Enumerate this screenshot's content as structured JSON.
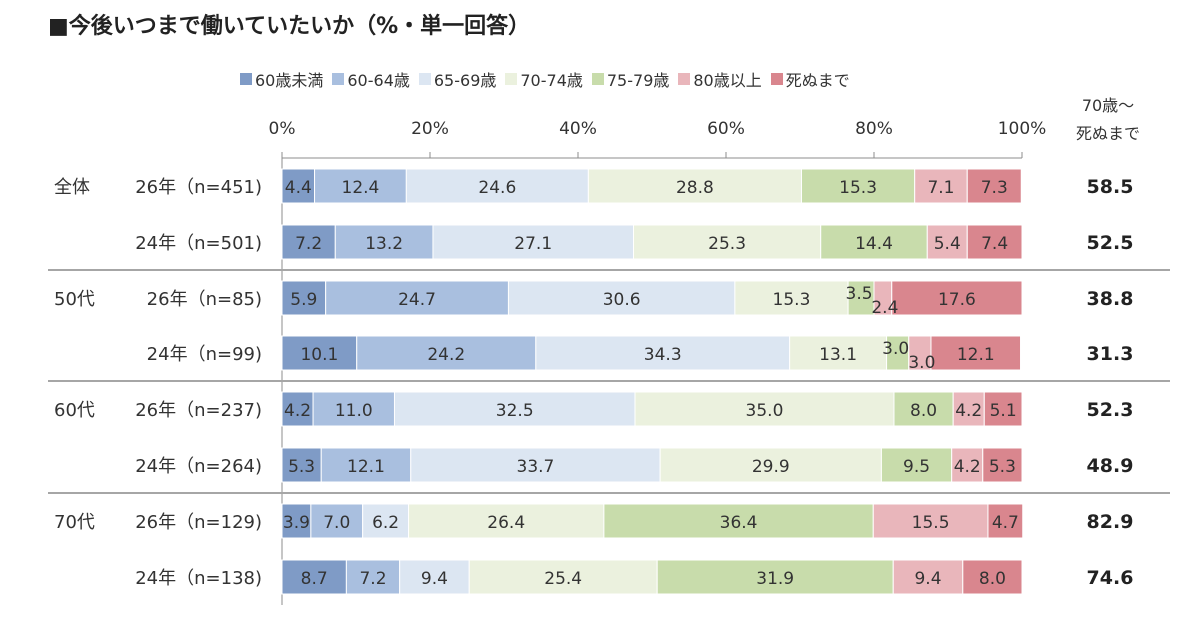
{
  "title": "■今後いつまで働いていたいか（%・単一回答）",
  "total_header": [
    "70歳～",
    "死ぬまで"
  ],
  "chart_data": {
    "type": "bar",
    "orientation": "horizontal",
    "stacked": "percent",
    "xlim": [
      0,
      100
    ],
    "ticks": [
      "0%",
      "20%",
      "40%",
      "60%",
      "80%",
      "100%"
    ],
    "tick_values": [
      0,
      20,
      40,
      60,
      80,
      100
    ],
    "legend_position": "top",
    "series": [
      {
        "name": "60歳未満",
        "color": "#7f9bc6"
      },
      {
        "name": "60-64歳",
        "color": "#a9bfdf"
      },
      {
        "name": "65-69歳",
        "color": "#dce6f2"
      },
      {
        "name": "70-74歳",
        "color": "#ebf1de"
      },
      {
        "name": "75-79歳",
        "color": "#c8dcab"
      },
      {
        "name": "80歳以上",
        "color": "#e9b6bb"
      },
      {
        "name": "死ぬまで",
        "color": "#d9868e"
      }
    ],
    "groups": [
      {
        "label": "全体",
        "rows": [
          {
            "label": "26年（n=451)",
            "values": [
              4.4,
              12.4,
              24.6,
              28.8,
              15.3,
              7.1,
              7.3
            ],
            "labels": [
              "4.4",
              "12.4",
              "24.6",
              "28.8",
              "15.3",
              "7.1",
              "7.3"
            ],
            "total": "58.5"
          },
          {
            "label": "24年（n=501)",
            "values": [
              7.2,
              13.2,
              27.1,
              25.3,
              14.4,
              5.4,
              7.4
            ],
            "labels": [
              "7.2",
              "13.2",
              "27.1",
              "25.3",
              "14.4",
              "5.4",
              "7.4"
            ],
            "total": "52.5"
          }
        ]
      },
      {
        "label": "50代",
        "rows": [
          {
            "label": "26年（n=85)",
            "values": [
              5.9,
              24.7,
              30.6,
              15.3,
              3.5,
              2.4,
              17.6
            ],
            "labels": [
              "5.9",
              "24.7",
              "30.6",
              "15.3",
              "3.5",
              "2.4",
              "17.6"
            ],
            "total": "38.8"
          },
          {
            "label": "24年（n=99)",
            "values": [
              10.1,
              24.2,
              34.3,
              13.1,
              3.0,
              3.0,
              12.1
            ],
            "labels": [
              "10.1",
              "24.2",
              "34.3",
              "13.1",
              "3.0",
              "3.0",
              "12.1"
            ],
            "total": "31.3"
          }
        ]
      },
      {
        "label": "60代",
        "rows": [
          {
            "label": "26年（n=237)",
            "values": [
              4.2,
              11.0,
              32.5,
              35.0,
              8.0,
              4.2,
              5.1
            ],
            "labels": [
              "4.2",
              "11.0",
              "32.5",
              "35.0",
              "8.0",
              "4.2",
              "5.1"
            ],
            "total": "52.3"
          },
          {
            "label": "24年（n=264)",
            "values": [
              5.3,
              12.1,
              33.7,
              29.9,
              9.5,
              4.2,
              5.3
            ],
            "labels": [
              "5.3",
              "12.1",
              "33.7",
              "29.9",
              "9.5",
              "4.2",
              "5.3"
            ],
            "total": "48.9"
          }
        ]
      },
      {
        "label": "70代",
        "rows": [
          {
            "label": "26年（n=129)",
            "values": [
              3.9,
              7.0,
              6.2,
              26.4,
              36.4,
              15.5,
              4.7
            ],
            "labels": [
              "3.9",
              "7.0",
              "6.2",
              "26.4",
              "36.4",
              "15.5",
              "4.7"
            ],
            "total": "82.9"
          },
          {
            "label": "24年（n=138)",
            "values": [
              8.7,
              7.2,
              9.4,
              25.4,
              31.9,
              9.4,
              8.0
            ],
            "labels": [
              "8.7",
              "7.2",
              "9.4",
              "25.4",
              "31.9",
              "9.4",
              "8.0"
            ],
            "total": "74.6"
          }
        ]
      }
    ]
  }
}
